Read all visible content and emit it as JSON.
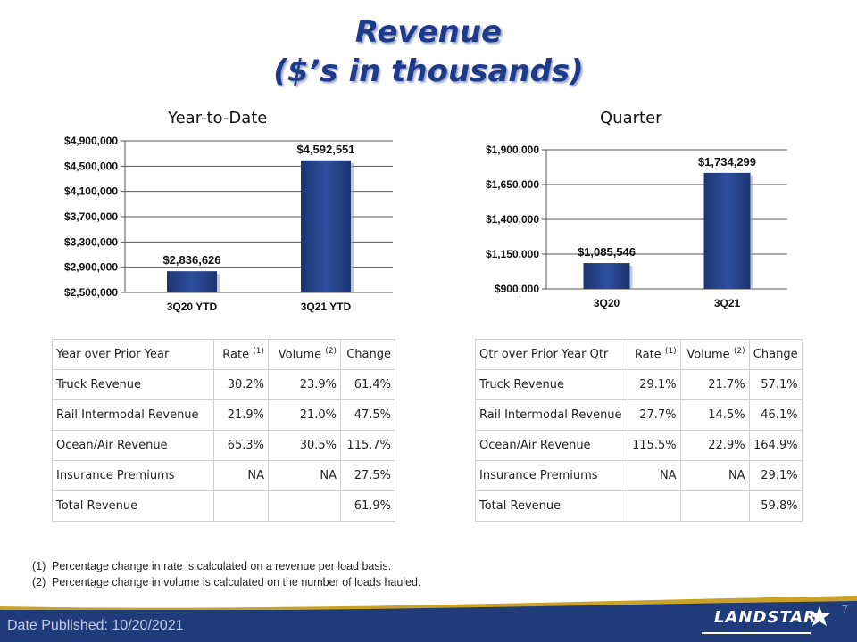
{
  "title": {
    "line1": "Revenue",
    "line2": "($’s in thousands)"
  },
  "chart_data": [
    {
      "type": "bar",
      "title": "Year-to-Date",
      "categories": [
        "3Q20 YTD",
        "3Q21 YTD"
      ],
      "values": [
        2836626,
        4592551
      ],
      "value_labels": [
        "$2,836,626",
        "$4,592,551"
      ],
      "ylim": [
        2500000,
        4900000
      ],
      "yticks": [
        2500000,
        2900000,
        3300000,
        3700000,
        4100000,
        4500000,
        4900000
      ],
      "ytick_labels": [
        "$2,500,000",
        "$2,900,000",
        "$3,300,000",
        "$3,700,000",
        "$4,100,000",
        "$4,500,000",
        "$4,900,000"
      ],
      "grid": true,
      "color": "#2e4f9e"
    },
    {
      "type": "bar",
      "title": "Quarter",
      "categories": [
        "3Q20",
        "3Q21"
      ],
      "values": [
        1085546,
        1734299
      ],
      "value_labels": [
        "$1,085,546",
        "$1,734,299"
      ],
      "ylim": [
        900000,
        1900000
      ],
      "yticks": [
        900000,
        1150000,
        1400000,
        1650000,
        1900000
      ],
      "ytick_labels": [
        "$900,000",
        "$1,150,000",
        "$1,400,000",
        "$1,650,000",
        "$1,900,000"
      ],
      "grid": true,
      "color": "#2e4f9e"
    }
  ],
  "ytd_table": {
    "headers": [
      "Year over Prior Year",
      "Rate",
      "Volume",
      "Change"
    ],
    "notes": [
      "(1)",
      "(2)"
    ],
    "rows": [
      [
        "Truck Revenue",
        "30.2%",
        "23.9%",
        "61.4%"
      ],
      [
        "Rail Intermodal Revenue",
        "21.9%",
        "21.0%",
        "47.5%"
      ],
      [
        "Ocean/Air Revenue",
        "65.3%",
        "30.5%",
        "115.7%"
      ],
      [
        "Insurance Premiums",
        "NA",
        "NA",
        "27.5%"
      ],
      [
        "Total Revenue",
        "",
        "",
        "61.9%"
      ]
    ]
  },
  "qtr_table": {
    "headers": [
      "Qtr over Prior Year Qtr",
      "Rate",
      "Volume",
      "Change"
    ],
    "notes": [
      "(1)",
      "(2)"
    ],
    "rows": [
      [
        "Truck Revenue",
        "29.1%",
        "21.7%",
        "57.1%"
      ],
      [
        "Rail Intermodal Revenue",
        "27.7%",
        "14.5%",
        "46.1%"
      ],
      [
        "Ocean/Air Revenue",
        "115.5%",
        "22.9%",
        "164.9%"
      ],
      [
        "Insurance Premiums",
        "NA",
        "NA",
        "29.1%"
      ],
      [
        "Total Revenue",
        "",
        "",
        "59.8%"
      ]
    ]
  },
  "footnotes": [
    {
      "num": "(1)",
      "text": "Percentage change in rate is calculated on a revenue per load basis."
    },
    {
      "num": "(2)",
      "text": "Percentage change in volume is calculated on the number of loads hauled."
    }
  ],
  "footer": {
    "date_published": "Date Published:  10/20/2021",
    "page_number": "7",
    "logo_text": "LANDSTAR",
    "logo_icon": "star-icon"
  }
}
